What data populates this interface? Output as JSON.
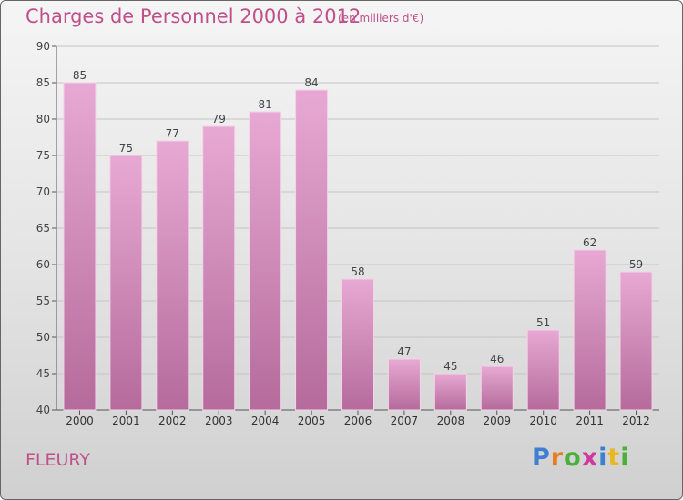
{
  "header": {
    "title": "Charges de Personnel 2000 à 2012",
    "subtitle": "(en milliers d'€)"
  },
  "footer": {
    "city": "FLEURY",
    "logo_text": "Proxiti",
    "logo_colors": [
      "#3d7fd0",
      "#e87d1e",
      "#4caf3a",
      "#d03aa0",
      "#3d7fd0",
      "#e8b81e",
      "#4caf3a"
    ]
  },
  "colors": {
    "text_accent": "#c0508a",
    "bar_top": "#e7a9d3",
    "bar_bottom": "#b56b9c"
  },
  "chart_data": {
    "type": "bar",
    "title": "Charges de Personnel 2000 à 2012",
    "subtitle": "(en milliers d'€)",
    "categories": [
      "2000",
      "2001",
      "2002",
      "2003",
      "2004",
      "2005",
      "2006",
      "2007",
      "2008",
      "2009",
      "2010",
      "2011",
      "2012"
    ],
    "values": [
      85,
      75,
      77,
      79,
      81,
      84,
      58,
      47,
      45,
      46,
      51,
      62,
      59
    ],
    "ylim": [
      40,
      90
    ],
    "yticks": [
      40,
      45,
      50,
      55,
      60,
      65,
      70,
      75,
      80,
      85,
      90
    ],
    "xlabel": "",
    "ylabel": "",
    "grid": true,
    "legend": "none"
  }
}
